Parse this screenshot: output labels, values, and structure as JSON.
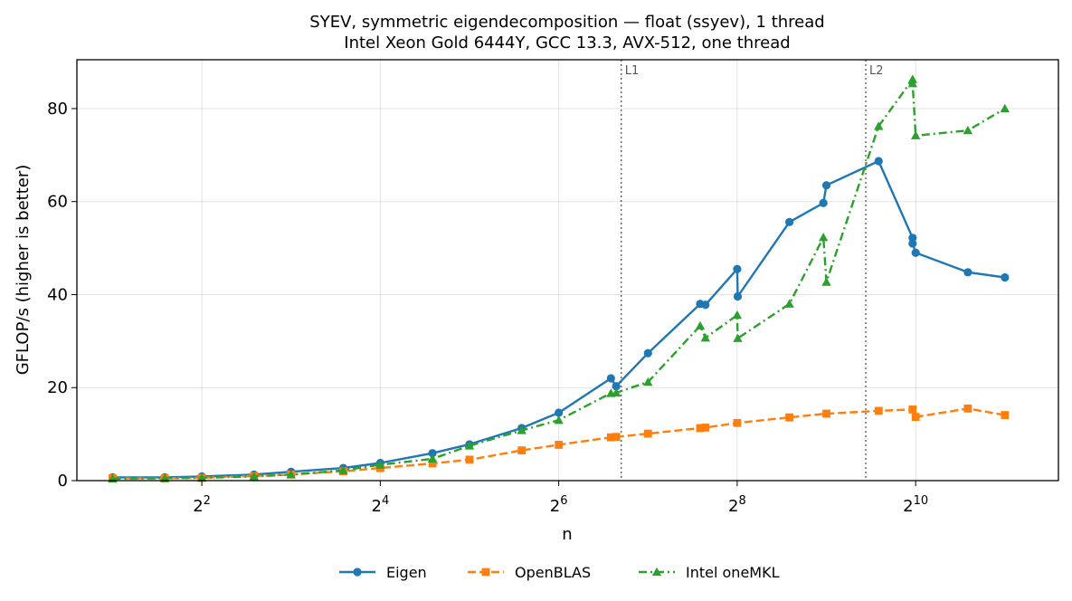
{
  "chart_data": {
    "type": "line",
    "title": "SYEV, symmetric eigendecomposition — float (ssyev), 1 thread",
    "subtitle": "Intel Xeon Gold 6444Y, GCC 13.3, AVX-512, one thread",
    "xlabel": "n",
    "ylabel": "GFLOP/s (higher is better)",
    "x_scale": "log2",
    "x_ticks": [
      {
        "value": 4,
        "base": "2",
        "exp": "2"
      },
      {
        "value": 16,
        "base": "2",
        "exp": "4"
      },
      {
        "value": 64,
        "base": "2",
        "exp": "6"
      },
      {
        "value": 256,
        "base": "2",
        "exp": "8"
      },
      {
        "value": 1024,
        "base": "2",
        "exp": "10"
      }
    ],
    "y_ticks": [
      0,
      20,
      40,
      60,
      80
    ],
    "ylim": [
      0,
      90.5
    ],
    "grid": true,
    "legend_position": "bottom-center",
    "reference_lines": [
      {
        "label": "L1",
        "x": 104
      },
      {
        "label": "L2",
        "x": 695
      }
    ],
    "series": [
      {
        "name": "Eigen",
        "color": "#1f77b4",
        "marker": "circle",
        "line_style": "solid",
        "x": [
          2,
          3,
          4,
          6,
          8,
          12,
          16,
          24,
          32,
          48,
          64,
          96,
          100,
          128,
          192,
          200,
          256,
          257,
          384,
          500,
          512,
          768,
          1000,
          1000,
          1024,
          1536,
          2048
        ],
        "y": [
          0.7,
          0.7,
          0.9,
          1.3,
          1.9,
          2.7,
          3.8,
          5.9,
          7.8,
          11.3,
          14.6,
          22.0,
          20.3,
          27.4,
          38.0,
          37.8,
          45.5,
          39.6,
          55.6,
          59.7,
          63.5,
          68.7,
          52.2,
          51.0,
          49.0,
          44.8,
          43.7
        ]
      },
      {
        "name": "OpenBLAS",
        "color": "#ff7f0e",
        "marker": "square",
        "line_style": "dashed",
        "x": [
          2,
          3,
          4,
          6,
          8,
          12,
          16,
          24,
          32,
          48,
          64,
          96,
          100,
          128,
          192,
          200,
          256,
          384,
          512,
          768,
          1000,
          1024,
          1536,
          2048
        ],
        "y": [
          0.5,
          0.5,
          0.6,
          1.0,
          1.3,
          2.0,
          2.7,
          3.7,
          4.5,
          6.5,
          7.7,
          9.3,
          9.4,
          10.1,
          11.3,
          11.4,
          12.4,
          13.6,
          14.4,
          15.0,
          15.3,
          13.7,
          15.5,
          14.1
        ]
      },
      {
        "name": "Intel oneMKL",
        "color": "#2ca02c",
        "marker": "triangle",
        "line_style": "dashdot",
        "x": [
          2,
          3,
          4,
          6,
          8,
          12,
          16,
          24,
          32,
          48,
          64,
          96,
          100,
          128,
          192,
          200,
          256,
          257,
          384,
          500,
          512,
          768,
          1000,
          1000,
          1024,
          1536,
          2048
        ],
        "y": [
          0.4,
          0.5,
          0.6,
          0.9,
          1.3,
          2.2,
          3.4,
          4.7,
          7.5,
          10.8,
          13.0,
          18.8,
          18.9,
          21.2,
          33.3,
          30.7,
          35.6,
          30.6,
          38.0,
          52.3,
          42.7,
          76.2,
          86.3,
          85.4,
          74.2,
          75.3,
          80.0
        ]
      }
    ]
  }
}
